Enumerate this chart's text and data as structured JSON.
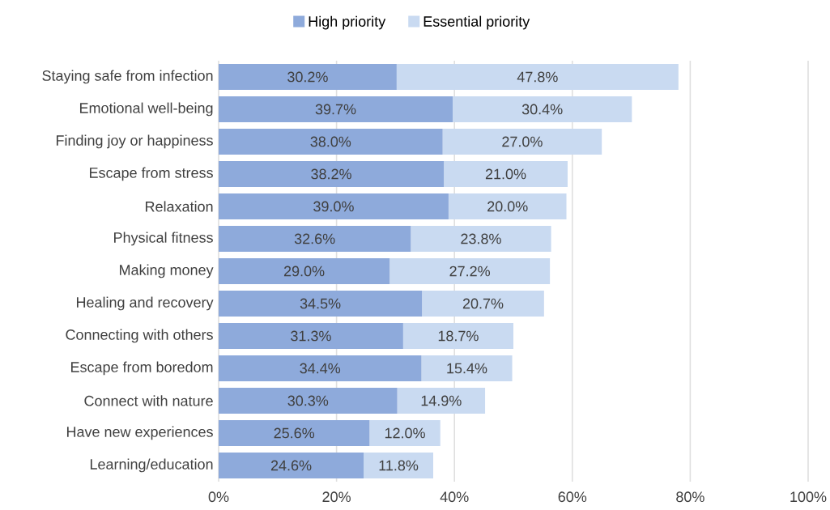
{
  "chart_data": {
    "type": "bar",
    "orientation": "horizontal",
    "stacked": true,
    "legend": "top",
    "grid": "x",
    "categories": [
      "Staying safe from infection",
      "Emotional well-being",
      "Finding joy or happiness",
      "Escape from stress",
      "Relaxation",
      "Physical fitness",
      "Making money",
      "Healing and recovery",
      "Connecting with others",
      "Escape from boredom",
      "Connect with nature",
      "Have new experiences",
      "Learning/education"
    ],
    "series": [
      {
        "name": "High priority",
        "color": "#8eaadb",
        "values": [
          30.2,
          39.7,
          38.0,
          38.2,
          39.0,
          32.6,
          29.0,
          34.5,
          31.3,
          34.4,
          30.3,
          25.6,
          24.6
        ],
        "value_labels": [
          "30.2%",
          "39.7%",
          "38.0%",
          "38.2%",
          "39.0%",
          "32.6%",
          "29.0%",
          "34.5%",
          "31.3%",
          "34.4%",
          "30.3%",
          "25.6%",
          "24.6%"
        ]
      },
      {
        "name": "Essential priority",
        "color": "#c9daf1",
        "values": [
          47.8,
          30.4,
          27.0,
          21.0,
          20.0,
          23.8,
          27.2,
          20.7,
          18.7,
          15.4,
          14.9,
          12.0,
          11.8
        ],
        "value_labels": [
          "47.8%",
          "30.4%",
          "27.0%",
          "21.0%",
          "20.0%",
          "23.8%",
          "27.2%",
          "20.7%",
          "18.7%",
          "15.4%",
          "14.9%",
          "12.0%",
          "11.8%"
        ]
      }
    ],
    "xlim": [
      0,
      100
    ],
    "xticks": [
      {
        "value": 0,
        "label": "0%"
      },
      {
        "value": 20,
        "label": "20%"
      },
      {
        "value": 40,
        "label": "40%"
      },
      {
        "value": 60,
        "label": "60%"
      },
      {
        "value": 80,
        "label": "80%"
      },
      {
        "value": 100,
        "label": "100%"
      }
    ]
  }
}
